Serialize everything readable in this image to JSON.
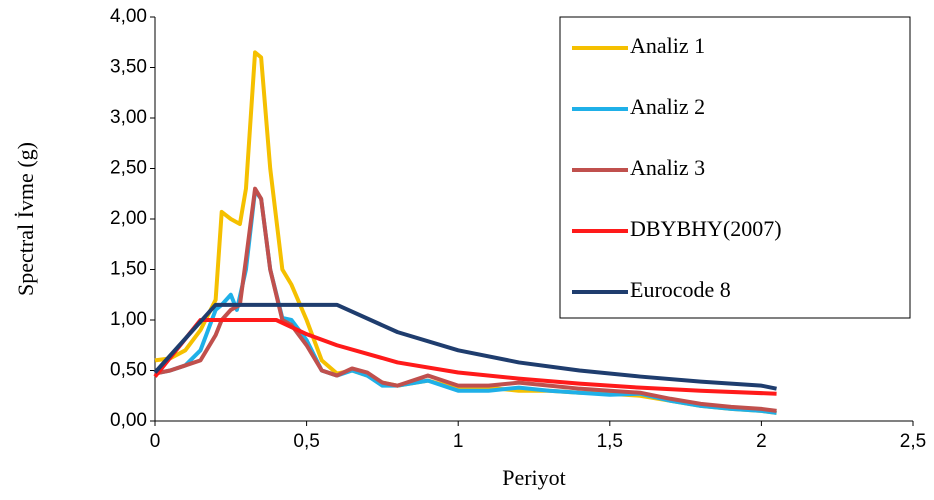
{
  "chart_data": {
    "type": "line",
    "x_label": "Periyot",
    "y_label": "Spectral İvme (g)",
    "xlim": [
      0,
      2.5
    ],
    "xticks": [
      0,
      {
        "value": 0.5,
        "label": "0,5"
      },
      1,
      {
        "value": 1.5,
        "label": "1,5"
      },
      2,
      {
        "value": 2.5,
        "label": "2,5"
      }
    ],
    "ylim": [
      0,
      4
    ],
    "yticks": [
      {
        "value": 0,
        "label": "0,00"
      },
      {
        "value": 0.5,
        "label": "0,50"
      },
      {
        "value": 1,
        "label": "1,00"
      },
      {
        "value": 1.5,
        "label": "1,50"
      },
      {
        "value": 2,
        "label": "2,00"
      },
      {
        "value": 2.5,
        "label": "2,50"
      },
      {
        "value": 3,
        "label": "3,00"
      },
      {
        "value": 3.5,
        "label": "3,50"
      },
      {
        "value": 4,
        "label": "4,00"
      }
    ],
    "grid": false,
    "legend": "upper right",
    "series": [
      {
        "name": "Analiz 1",
        "color": "#f5c000",
        "x": [
          0,
          0.05,
          0.1,
          0.15,
          0.2,
          0.22,
          0.25,
          0.28,
          0.3,
          0.33,
          0.35,
          0.38,
          0.42,
          0.45,
          0.5,
          0.55,
          0.6,
          0.65,
          0.7,
          0.75,
          0.8,
          0.9,
          1.0,
          1.1,
          1.2,
          1.3,
          1.4,
          1.5,
          1.6,
          1.7,
          1.8,
          1.9,
          2.0,
          2.05
        ],
        "values": [
          0.6,
          0.62,
          0.7,
          0.9,
          1.2,
          2.07,
          2.0,
          1.95,
          2.3,
          3.65,
          3.6,
          2.5,
          1.5,
          1.35,
          1.0,
          0.6,
          0.47,
          0.5,
          0.45,
          0.38,
          0.35,
          0.4,
          0.32,
          0.33,
          0.3,
          0.3,
          0.28,
          0.27,
          0.25,
          0.2,
          0.15,
          0.12,
          0.1,
          0.08
        ]
      },
      {
        "name": "Analiz 2",
        "color": "#1fb0e8",
        "x": [
          0,
          0.05,
          0.1,
          0.15,
          0.2,
          0.22,
          0.25,
          0.27,
          0.3,
          0.33,
          0.35,
          0.38,
          0.42,
          0.45,
          0.5,
          0.55,
          0.6,
          0.65,
          0.7,
          0.75,
          0.8,
          0.9,
          1.0,
          1.1,
          1.2,
          1.3,
          1.4,
          1.5,
          1.6,
          1.7,
          1.8,
          1.9,
          2.0,
          2.05
        ],
        "values": [
          0.47,
          0.5,
          0.55,
          0.7,
          1.1,
          1.15,
          1.25,
          1.1,
          1.5,
          2.28,
          2.2,
          1.5,
          1.02,
          1.0,
          0.8,
          0.5,
          0.45,
          0.5,
          0.45,
          0.35,
          0.35,
          0.4,
          0.3,
          0.3,
          0.33,
          0.3,
          0.28,
          0.26,
          0.27,
          0.2,
          0.15,
          0.12,
          0.1,
          0.08
        ]
      },
      {
        "name": "Analiz 3",
        "color": "#c0504d",
        "x": [
          0,
          0.05,
          0.1,
          0.15,
          0.2,
          0.22,
          0.25,
          0.28,
          0.3,
          0.33,
          0.35,
          0.38,
          0.42,
          0.45,
          0.5,
          0.55,
          0.6,
          0.65,
          0.7,
          0.75,
          0.8,
          0.9,
          1.0,
          1.1,
          1.2,
          1.3,
          1.4,
          1.5,
          1.6,
          1.7,
          1.8,
          1.9,
          2.0,
          2.05
        ],
        "values": [
          0.47,
          0.5,
          0.55,
          0.6,
          0.85,
          1.0,
          1.1,
          1.15,
          1.6,
          2.3,
          2.2,
          1.5,
          1.0,
          0.95,
          0.75,
          0.5,
          0.45,
          0.52,
          0.48,
          0.38,
          0.35,
          0.45,
          0.35,
          0.35,
          0.38,
          0.35,
          0.32,
          0.3,
          0.28,
          0.22,
          0.17,
          0.14,
          0.12,
          0.1
        ]
      },
      {
        "name": "DBYBHY(2007)",
        "color": "#ff1a1a",
        "x": [
          0,
          0.15,
          0.4,
          0.5,
          0.6,
          0.8,
          1.0,
          1.2,
          1.4,
          1.6,
          1.8,
          2.05
        ],
        "values": [
          0.44,
          1.0,
          1.0,
          0.86,
          0.75,
          0.58,
          0.48,
          0.42,
          0.37,
          0.33,
          0.3,
          0.27
        ]
      },
      {
        "name": "Eurocode 8",
        "color": "#1f3d6e",
        "x": [
          0,
          0.2,
          0.6,
          0.8,
          1.0,
          1.2,
          1.4,
          1.6,
          1.8,
          2.0,
          2.05
        ],
        "values": [
          0.48,
          1.15,
          1.15,
          0.88,
          0.7,
          0.58,
          0.5,
          0.44,
          0.39,
          0.35,
          0.32
        ]
      }
    ]
  }
}
